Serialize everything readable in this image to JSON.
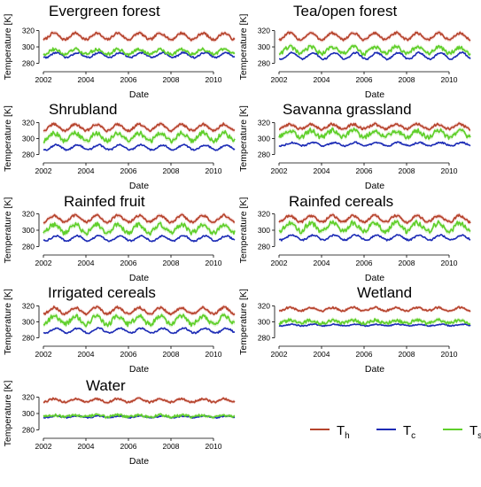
{
  "chart_data": [
    {
      "type": "line",
      "title": "Evergreen forest",
      "xlabel": "Date",
      "ylabel": "Temperature [K]",
      "xlim": [
        2002,
        2011
      ],
      "ylim": [
        275,
        325
      ],
      "xticks": [
        "2002",
        "2004",
        "2006",
        "2008",
        "2010"
      ],
      "yticks": [
        "280",
        "300",
        "320"
      ],
      "series": [
        {
          "key": "Th",
          "mean": 313,
          "amplitude": 4,
          "noise": 1.5,
          "band": 5
        },
        {
          "key": "Tc",
          "mean": 290,
          "amplitude": 3,
          "noise": 1,
          "band": 2
        },
        {
          "key": "Ts",
          "mean": 294,
          "amplitude": 3,
          "noise": 2,
          "band": 4
        }
      ]
    },
    {
      "type": "line",
      "title": "Tea/open forest",
      "xlabel": "Date",
      "ylabel": "Temperature [K]",
      "xlim": [
        2002,
        2011
      ],
      "ylim": [
        275,
        325
      ],
      "xticks": [
        "2002",
        "2004",
        "2006",
        "2008",
        "2010"
      ],
      "yticks": [
        "280",
        "300",
        "320"
      ],
      "series": [
        {
          "key": "Th",
          "mean": 313,
          "amplitude": 4,
          "noise": 1.5,
          "band": 5
        },
        {
          "key": "Tc",
          "mean": 289,
          "amplitude": 4,
          "noise": 1,
          "band": 2
        },
        {
          "key": "Ts",
          "mean": 296,
          "amplitude": 4,
          "noise": 2.5,
          "band": 5
        }
      ]
    },
    {
      "type": "line",
      "title": "Shrubland",
      "xlabel": "Date",
      "ylabel": "Temperature [K]",
      "xlim": [
        2002,
        2011
      ],
      "ylim": [
        275,
        325
      ],
      "xticks": [
        "2002",
        "2004",
        "2006",
        "2008",
        "2010"
      ],
      "yticks": [
        "280",
        "300",
        "320"
      ],
      "series": [
        {
          "key": "Th",
          "mean": 314,
          "amplitude": 4,
          "noise": 1.5,
          "band": 5
        },
        {
          "key": "Tc",
          "mean": 289,
          "amplitude": 3,
          "noise": 1,
          "band": 2
        },
        {
          "key": "Ts",
          "mean": 302,
          "amplitude": 5,
          "noise": 3,
          "band": 6
        }
      ]
    },
    {
      "type": "line",
      "title": "Savanna grassland",
      "xlabel": "Date",
      "ylabel": "Temperature [K]",
      "xlim": [
        2002,
        2011
      ],
      "ylim": [
        275,
        325
      ],
      "xticks": [
        "2002",
        "2004",
        "2006",
        "2008",
        "2010"
      ],
      "yticks": [
        "280",
        "300",
        "320"
      ],
      "series": [
        {
          "key": "Th",
          "mean": 315,
          "amplitude": 3,
          "noise": 1.5,
          "band": 5
        },
        {
          "key": "Tc",
          "mean": 293,
          "amplitude": 2,
          "noise": 1,
          "band": 2
        },
        {
          "key": "Ts",
          "mean": 306,
          "amplitude": 4,
          "noise": 3,
          "band": 6
        }
      ]
    },
    {
      "type": "line",
      "title": "Rainfed fruit",
      "xlabel": "Date",
      "ylabel": "Temperature [K]",
      "xlim": [
        2002,
        2011
      ],
      "ylim": [
        275,
        325
      ],
      "xticks": [
        "2002",
        "2004",
        "2006",
        "2008",
        "2010"
      ],
      "yticks": [
        "280",
        "300",
        "320"
      ],
      "series": [
        {
          "key": "Th",
          "mean": 314,
          "amplitude": 4,
          "noise": 1.5,
          "band": 5
        },
        {
          "key": "Tc",
          "mean": 290,
          "amplitude": 3,
          "noise": 1,
          "band": 2
        },
        {
          "key": "Ts",
          "mean": 302,
          "amplitude": 5,
          "noise": 3,
          "band": 6
        }
      ]
    },
    {
      "type": "line",
      "title": "Rainfed cereals",
      "xlabel": "Date",
      "ylabel": "Temperature [K]",
      "xlim": [
        2002,
        2011
      ],
      "ylim": [
        275,
        325
      ],
      "xticks": [
        "2002",
        "2004",
        "2006",
        "2008",
        "2010"
      ],
      "yticks": [
        "280",
        "300",
        "320"
      ],
      "series": [
        {
          "key": "Th",
          "mean": 314,
          "amplitude": 4,
          "noise": 1.5,
          "band": 5
        },
        {
          "key": "Tc",
          "mean": 291,
          "amplitude": 3,
          "noise": 1,
          "band": 2
        },
        {
          "key": "Ts",
          "mean": 304,
          "amplitude": 5,
          "noise": 3,
          "band": 6
        }
      ]
    },
    {
      "type": "line",
      "title": "Irrigated cereals",
      "xlabel": "Date",
      "ylabel": "Temperature [K]",
      "xlim": [
        2002,
        2011
      ],
      "ylim": [
        275,
        325
      ],
      "xticks": [
        "2002",
        "2004",
        "2006",
        "2008",
        "2010"
      ],
      "yticks": [
        "280",
        "300",
        "320"
      ],
      "series": [
        {
          "key": "Th",
          "mean": 314,
          "amplitude": 4,
          "noise": 1.5,
          "band": 5
        },
        {
          "key": "Tc",
          "mean": 289,
          "amplitude": 3,
          "noise": 1,
          "band": 2
        },
        {
          "key": "Ts",
          "mean": 302,
          "amplitude": 5,
          "noise": 3,
          "band": 6
        }
      ]
    },
    {
      "type": "line",
      "title": "Wetland",
      "xlabel": "Date",
      "ylabel": "Temperature [K]",
      "xlim": [
        2002,
        2011
      ],
      "ylim": [
        275,
        325
      ],
      "xticks": [
        "2002",
        "2004",
        "2006",
        "2008",
        "2010"
      ],
      "yticks": [
        "280",
        "300",
        "320"
      ],
      "series": [
        {
          "key": "Th",
          "mean": 316,
          "amplitude": 2,
          "noise": 1.2,
          "band": 4
        },
        {
          "key": "Tc",
          "mean": 296,
          "amplitude": 1,
          "noise": 0.7,
          "band": 2
        },
        {
          "key": "Ts",
          "mean": 300,
          "amplitude": 2,
          "noise": 2,
          "band": 5
        }
      ]
    },
    {
      "type": "line",
      "title": "Water",
      "xlabel": "Date",
      "ylabel": "Temperature [K]",
      "xlim": [
        2002,
        2011
      ],
      "ylim": [
        275,
        325
      ],
      "xticks": [
        "2002",
        "2004",
        "2006",
        "2008",
        "2010"
      ],
      "yticks": [
        "280",
        "300",
        "320"
      ],
      "series": [
        {
          "key": "Th",
          "mean": 316,
          "amplitude": 2,
          "noise": 1.2,
          "band": 4
        },
        {
          "key": "Tc",
          "mean": 296,
          "amplitude": 1,
          "noise": 0.7,
          "band": 2
        },
        {
          "key": "Ts",
          "mean": 297,
          "amplitude": 1,
          "noise": 1.5,
          "band": 4
        }
      ]
    }
  ],
  "legend": {
    "position": "bottom-right",
    "items": [
      {
        "key": "Th",
        "label": "T",
        "sub": "h",
        "color": "#b5442c",
        "band": "#f2c4c4"
      },
      {
        "key": "Tc",
        "label": "T",
        "sub": "c",
        "color": "#1c2bb5",
        "band": "#c9d8f5"
      },
      {
        "key": "Ts",
        "label": "T",
        "sub": "s",
        "color": "#5fcf2a",
        "band": "#cdeeb8"
      }
    ]
  }
}
